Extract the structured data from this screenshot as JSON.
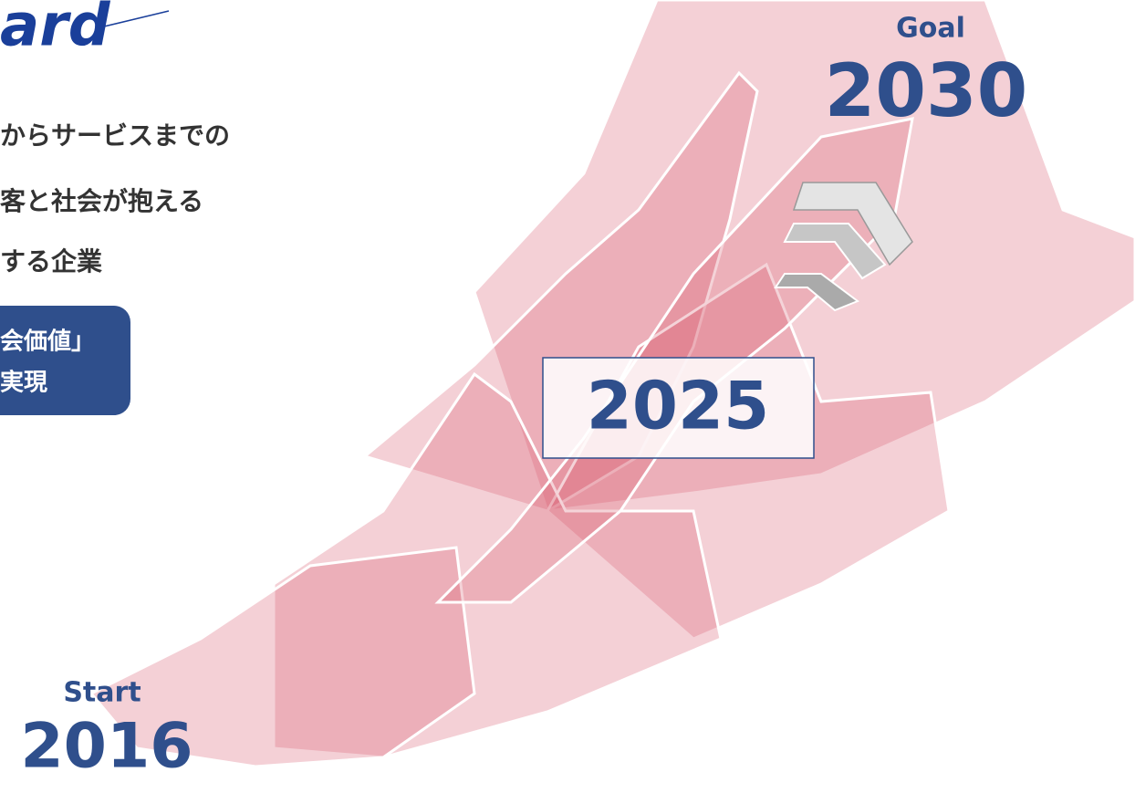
{
  "logo": "ard",
  "lines": [
    "からサービスまでの",
    "客と社会が抱える",
    "する企業"
  ],
  "badge": [
    "会価値」",
    "実現"
  ],
  "milestones": {
    "goal_label": "Goal",
    "goal_year": "2030",
    "mid_year": "2025",
    "start_label": "Start",
    "start_year": "2016"
  }
}
